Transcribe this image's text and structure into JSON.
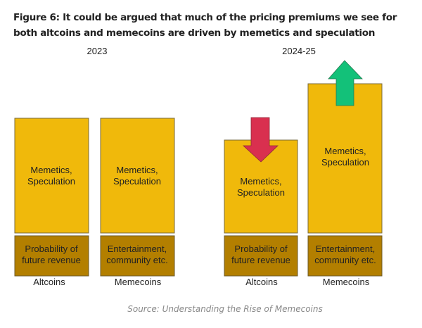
{
  "title": "Figure 6: It could be argued that much of the pricing premiums we see for both altcoins and memecoins are driven by memetics and speculation",
  "source": "Source: Understanding the Rise of Memecoins",
  "colors": {
    "premium": "#f0b90b",
    "base": "#b37f00",
    "down_arrow": "#d9304f",
    "up_arrow": "#13c179",
    "border": "#7a6a3a"
  },
  "panels": [
    {
      "period": "2023",
      "columns": [
        {
          "name": "Altcoins",
          "top": [
            "Memetics,",
            "Speculation"
          ],
          "bottom": [
            "Probability of",
            "future revenue"
          ]
        },
        {
          "name": "Memecoins",
          "top": [
            "Memetics,",
            "Speculation"
          ],
          "bottom": [
            "Entertainment,",
            "community etc."
          ]
        }
      ]
    },
    {
      "period": "2024-25",
      "columns": [
        {
          "name": "Altcoins",
          "top": [
            "Memetics,",
            "Speculation"
          ],
          "bottom": [
            "Probability of",
            "future revenue"
          ],
          "arrow": "down-arrow"
        },
        {
          "name": "Memecoins",
          "top": [
            "Memetics,",
            "Speculation"
          ],
          "bottom": [
            "Entertainment,",
            "community etc."
          ],
          "arrow": "up-arrow"
        }
      ]
    }
  ]
}
